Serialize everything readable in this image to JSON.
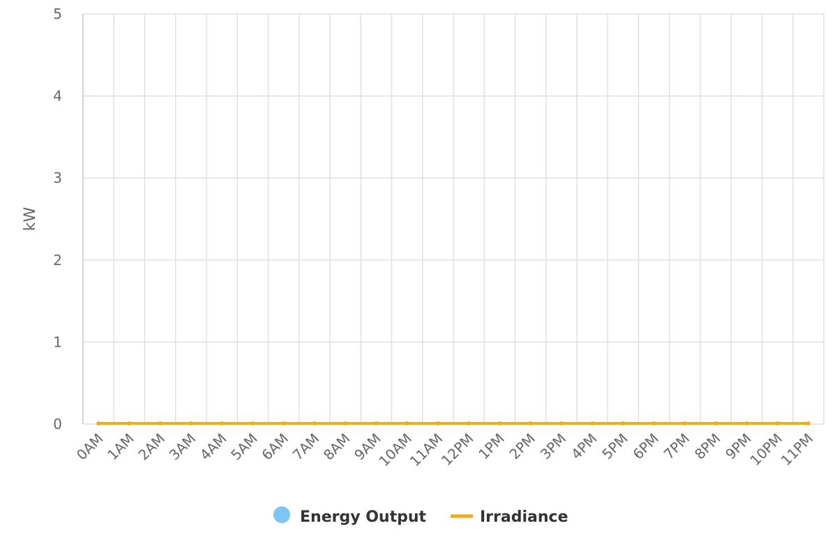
{
  "chart_data": {
    "type": "line",
    "title": "",
    "xlabel": "",
    "ylabel": "kW",
    "ylim": [
      0,
      5
    ],
    "yticks": [
      0,
      1,
      2,
      3,
      4,
      5
    ],
    "categories": [
      "0AM",
      "1AM",
      "2AM",
      "3AM",
      "4AM",
      "5AM",
      "6AM",
      "7AM",
      "8AM",
      "9AM",
      "10AM",
      "11AM",
      "12PM",
      "1PM",
      "2PM",
      "3PM",
      "4PM",
      "5PM",
      "6PM",
      "7PM",
      "8PM",
      "9PM",
      "10PM",
      "11PM"
    ],
    "grid": true,
    "legend_position": "bottom-center",
    "series": [
      {
        "name": "Energy Output",
        "kind": "column",
        "color": "#7cc7f5",
        "values": [
          0,
          0,
          0,
          0,
          0,
          0,
          0,
          0,
          0,
          0,
          0,
          0,
          0,
          0,
          0,
          0,
          0,
          0,
          0,
          0,
          0,
          0,
          0,
          0
        ]
      },
      {
        "name": "Irradiance",
        "kind": "line",
        "color": "#f0ad1a",
        "values": [
          0,
          0,
          0,
          0,
          0,
          0,
          0,
          0,
          0,
          0,
          0,
          0,
          0,
          0,
          0,
          0,
          0,
          0,
          0,
          0,
          0,
          0,
          0,
          0
        ]
      }
    ]
  }
}
